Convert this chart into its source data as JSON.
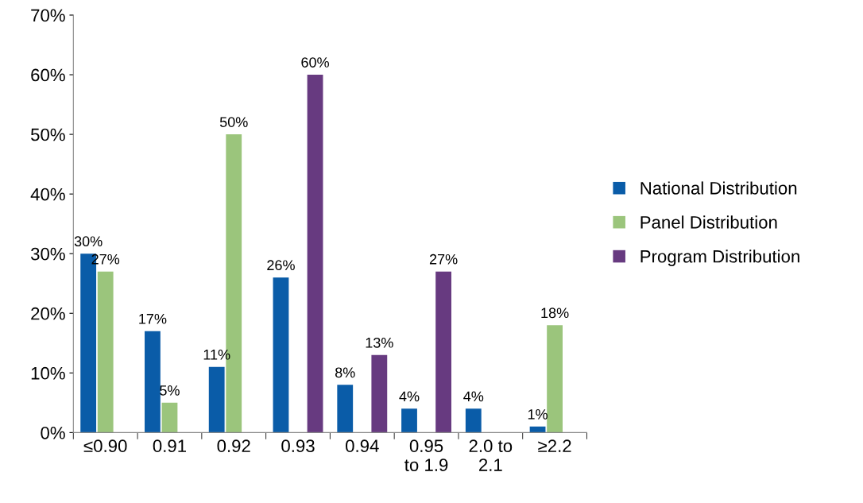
{
  "chart_data": {
    "type": "bar",
    "categories": [
      "≤0.90",
      "0.91",
      "0.92",
      "0.93",
      "0.94",
      "0.95\nto 1.9",
      "2.0 to\n2.1",
      "≥2.2"
    ],
    "series": [
      {
        "name": "National Distribution",
        "color": "#0a5ca8",
        "values": [
          30,
          17,
          11,
          26,
          8,
          4,
          4,
          1
        ],
        "value_labels": [
          "30%",
          "17%",
          "11%",
          "26%",
          "8%",
          "4%",
          "4%",
          "1%"
        ]
      },
      {
        "name": "Panel Distribution",
        "color": "#9bc57c",
        "values": [
          27,
          5,
          50,
          null,
          null,
          null,
          null,
          18
        ],
        "value_labels": [
          "27%",
          "5%",
          "50%",
          null,
          null,
          null,
          null,
          "18%"
        ]
      },
      {
        "name": "Program Distribution",
        "color": "#673a80",
        "values": [
          null,
          null,
          null,
          60,
          13,
          27,
          null,
          null
        ],
        "value_labels": [
          null,
          null,
          null,
          "60%",
          "13%",
          "27%",
          null,
          null
        ]
      }
    ],
    "ylim": [
      0,
      70
    ],
    "yticks": [
      {
        "value": 0,
        "label": "0%"
      },
      {
        "value": 10,
        "label": "10%"
      },
      {
        "value": 20,
        "label": "20%"
      },
      {
        "value": 30,
        "label": "30%"
      },
      {
        "value": 40,
        "label": "40%"
      },
      {
        "value": 50,
        "label": "50%"
      },
      {
        "value": 60,
        "label": "60%"
      },
      {
        "value": 70,
        "label": "70%"
      }
    ],
    "grid": false,
    "legend": "right"
  }
}
